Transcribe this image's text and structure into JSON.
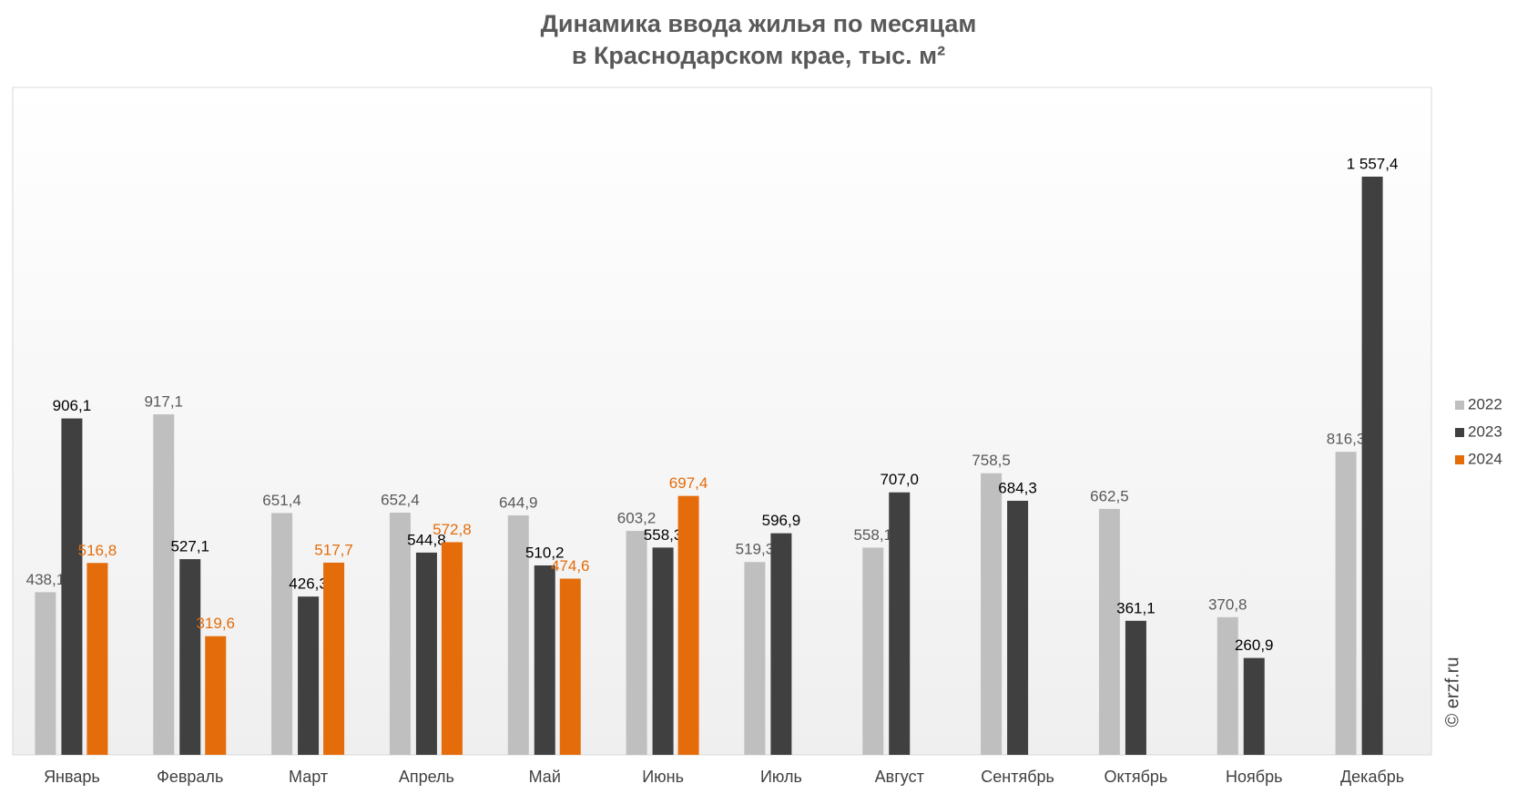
{
  "chart_data": {
    "type": "bar",
    "title": "Динамика ввода жилья по месяцам",
    "subtitle": "в Краснодарском крае, тыс. м²",
    "watermark": "© erzf.ru",
    "legend": "right",
    "categories": [
      "Январь",
      "Февраль",
      "Март",
      "Апрель",
      "Май",
      "Июнь",
      "Июль",
      "Август",
      "Сентябрь",
      "Октябрь",
      "Ноябрь",
      "Декабрь"
    ],
    "series": [
      {
        "name": "2022",
        "color": "#bfbfbf",
        "label_color": "#595959",
        "values": [
          438.1,
          917.1,
          651.4,
          652.4,
          644.9,
          603.2,
          519.3,
          558.1,
          758.5,
          662.5,
          370.8,
          816.3
        ],
        "value_labels": [
          "438,1",
          "917,1",
          "651,4",
          "652,4",
          "644,9",
          "603,2",
          "519,3",
          "558,1",
          "758,5",
          "662,5",
          "370,8",
          "816,3"
        ]
      },
      {
        "name": "2023",
        "color": "#404040",
        "label_color": "#000000",
        "values": [
          906.1,
          527.1,
          426.3,
          544.8,
          510.2,
          558.3,
          596.9,
          707.0,
          684.3,
          361.1,
          260.9,
          1557.4
        ],
        "value_labels": [
          "906,1",
          "527,1",
          "426,3",
          "544,8",
          "510,2",
          "558,3",
          "596,9",
          "707,0",
          "684,3",
          "361,1",
          "260,9",
          "1 557,4"
        ]
      },
      {
        "name": "2024",
        "color": "#e46c0a",
        "label_color": "#e46c0a",
        "values": [
          516.8,
          319.6,
          517.7,
          572.8,
          474.6,
          697.4,
          null,
          null,
          null,
          null,
          null,
          null
        ],
        "value_labels": [
          "516,8",
          "319,6",
          "517,7",
          "572,8",
          "474,6",
          "697,4",
          null,
          null,
          null,
          null,
          null,
          null
        ]
      }
    ]
  }
}
